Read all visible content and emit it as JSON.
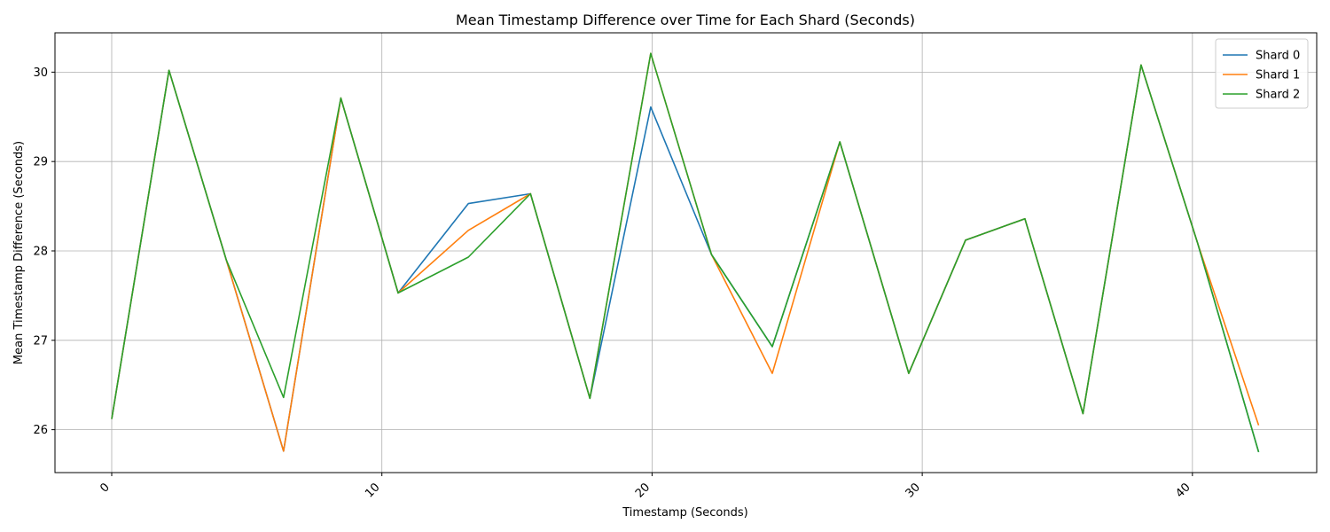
{
  "chart_data": {
    "type": "line",
    "title": "Mean Timestamp Difference over Time for Each Shard (Seconds)",
    "xlabel": "Timestamp (Seconds)",
    "ylabel": "Mean Timestamp Difference (Seconds)",
    "xlim": [
      -2.1,
      44.6
    ],
    "ylim": [
      25.52,
      30.44
    ],
    "xticks": [
      0,
      10,
      20,
      30,
      40
    ],
    "yticks": [
      26,
      27,
      28,
      29,
      30
    ],
    "grid": true,
    "legend_position": "top-right",
    "x": [
      0.0,
      2.12,
      4.24,
      6.36,
      8.48,
      10.6,
      13.2,
      15.5,
      17.7,
      19.95,
      22.2,
      24.45,
      26.95,
      29.5,
      31.6,
      33.8,
      35.95,
      38.1,
      40.2,
      42.45
    ],
    "series": [
      {
        "name": "Shard 0",
        "color": "#1f77b4",
        "values": [
          26.12,
          30.02,
          27.9,
          25.76,
          29.71,
          27.53,
          28.53,
          28.64,
          26.35,
          29.61,
          27.96,
          26.93,
          29.22,
          26.63,
          28.12,
          28.36,
          26.18,
          30.08,
          28.08,
          25.75
        ]
      },
      {
        "name": "Shard 1",
        "color": "#ff7f0e",
        "values": [
          26.12,
          30.02,
          27.9,
          25.76,
          29.71,
          27.53,
          28.23,
          28.64,
          26.35,
          30.21,
          27.96,
          26.63,
          29.22,
          26.63,
          28.12,
          28.36,
          26.18,
          30.08,
          28.08,
          26.05
        ]
      },
      {
        "name": "Shard 2",
        "color": "#2ca02c",
        "values": [
          26.12,
          30.02,
          27.9,
          26.36,
          29.71,
          27.53,
          27.93,
          28.64,
          26.35,
          30.21,
          27.96,
          26.93,
          29.22,
          26.63,
          28.12,
          28.36,
          26.18,
          30.08,
          28.08,
          25.75
        ]
      }
    ]
  }
}
